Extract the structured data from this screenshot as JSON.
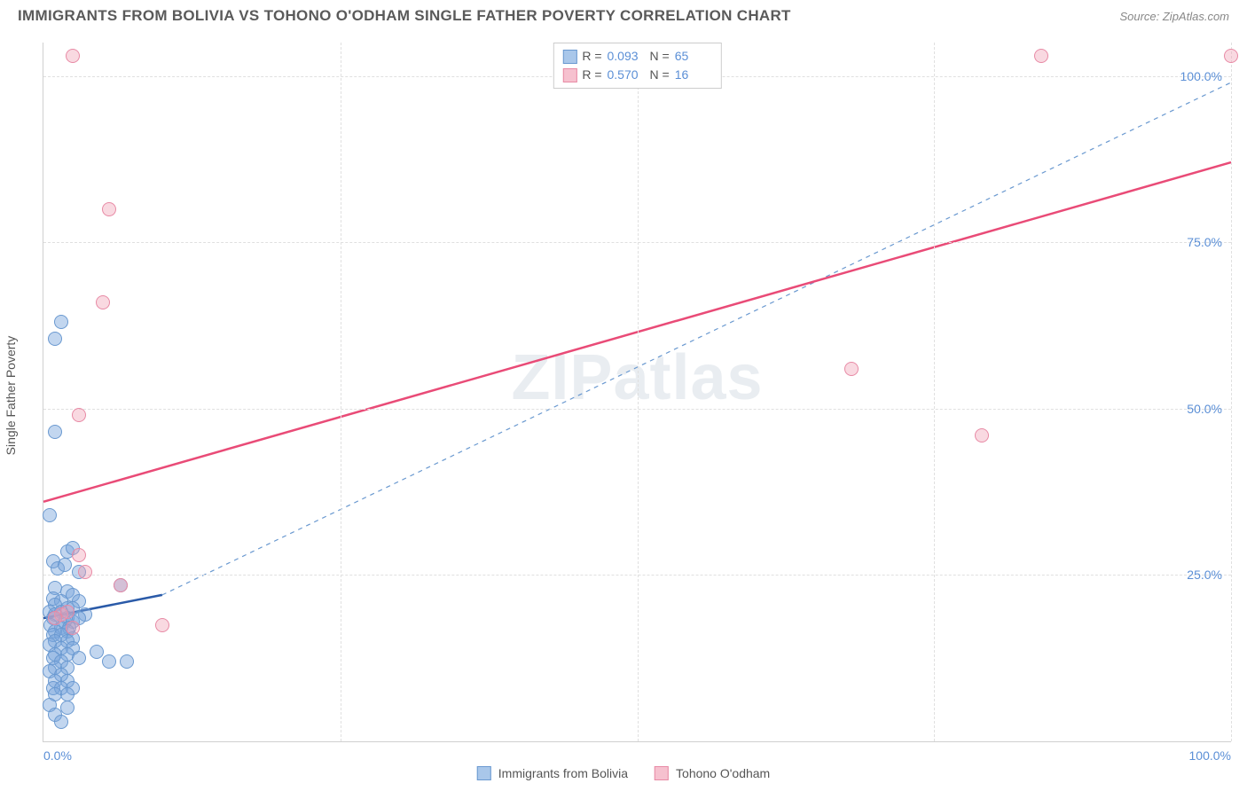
{
  "header": {
    "title": "IMMIGRANTS FROM BOLIVIA VS TOHONO O'ODHAM SINGLE FATHER POVERTY CORRELATION CHART",
    "source": "Source: ZipAtlas.com"
  },
  "chart": {
    "type": "scatter",
    "ylabel": "Single Father Poverty",
    "xlim": [
      0,
      100
    ],
    "ylim": [
      0,
      105
    ],
    "xticks": [
      {
        "pos": 0,
        "label": "0.0%"
      },
      {
        "pos": 100,
        "label": "100.0%"
      }
    ],
    "xgrid": [
      25,
      50,
      75,
      100
    ],
    "yticks": [
      {
        "pos": 25,
        "label": "25.0%"
      },
      {
        "pos": 50,
        "label": "50.0%"
      },
      {
        "pos": 75,
        "label": "75.0%"
      },
      {
        "pos": 100,
        "label": "100.0%"
      }
    ],
    "background_color": "#ffffff",
    "grid_color": "#e0e0e0",
    "axis_label_color": "#5b8fd6",
    "series": [
      {
        "name": "Immigrants from Bolivia",
        "color_fill": "rgba(120,165,220,0.45)",
        "color_stroke": "#6a99d0",
        "swatch_fill": "#a9c7ea",
        "swatch_stroke": "#6a99d0",
        "marker_size": 16,
        "R": "0.093",
        "N": "65",
        "trend": {
          "x1": 0,
          "y1": 18.5,
          "x2": 10,
          "y2": 22,
          "stroke": "#2a5aa8",
          "width": 2.5,
          "dash": "none"
        },
        "trend_ext": {
          "x1": 10,
          "y1": 22,
          "x2": 100,
          "y2": 99,
          "stroke": "#6a99d0",
          "width": 1.2,
          "dash": "5,5"
        },
        "points": [
          {
            "x": 0.5,
            "y": 34
          },
          {
            "x": 1.5,
            "y": 63
          },
          {
            "x": 1.0,
            "y": 60.5
          },
          {
            "x": 1.0,
            "y": 46.5
          },
          {
            "x": 2.0,
            "y": 28.5
          },
          {
            "x": 2.5,
            "y": 29
          },
          {
            "x": 0.8,
            "y": 27
          },
          {
            "x": 1.2,
            "y": 26
          },
          {
            "x": 1.8,
            "y": 26.5
          },
          {
            "x": 3.0,
            "y": 25.5
          },
          {
            "x": 6.5,
            "y": 23.5
          },
          {
            "x": 1.0,
            "y": 23
          },
          {
            "x": 2.0,
            "y": 22.5
          },
          {
            "x": 2.5,
            "y": 22
          },
          {
            "x": 0.8,
            "y": 21.5
          },
          {
            "x": 1.5,
            "y": 21
          },
          {
            "x": 3.0,
            "y": 21
          },
          {
            "x": 1.0,
            "y": 20.5
          },
          {
            "x": 2.0,
            "y": 20
          },
          {
            "x": 2.5,
            "y": 20
          },
          {
            "x": 0.5,
            "y": 19.5
          },
          {
            "x": 1.5,
            "y": 19.5
          },
          {
            "x": 3.5,
            "y": 19
          },
          {
            "x": 1.0,
            "y": 19
          },
          {
            "x": 2.0,
            "y": 18.5
          },
          {
            "x": 0.8,
            "y": 18.5
          },
          {
            "x": 1.8,
            "y": 18
          },
          {
            "x": 2.5,
            "y": 18
          },
          {
            "x": 3.0,
            "y": 18.5
          },
          {
            "x": 0.6,
            "y": 17.5
          },
          {
            "x": 1.5,
            "y": 17
          },
          {
            "x": 2.2,
            "y": 17
          },
          {
            "x": 1.0,
            "y": 16.5
          },
          {
            "x": 2.0,
            "y": 16.5
          },
          {
            "x": 0.8,
            "y": 16
          },
          {
            "x": 1.5,
            "y": 16
          },
          {
            "x": 2.5,
            "y": 15.5
          },
          {
            "x": 1.0,
            "y": 15
          },
          {
            "x": 2.0,
            "y": 15
          },
          {
            "x": 0.5,
            "y": 14.5
          },
          {
            "x": 1.5,
            "y": 14
          },
          {
            "x": 2.5,
            "y": 14
          },
          {
            "x": 4.5,
            "y": 13.5
          },
          {
            "x": 1.0,
            "y": 13
          },
          {
            "x": 2.0,
            "y": 13
          },
          {
            "x": 0.8,
            "y": 12.5
          },
          {
            "x": 3.0,
            "y": 12.5
          },
          {
            "x": 5.5,
            "y": 12
          },
          {
            "x": 7.0,
            "y": 12
          },
          {
            "x": 1.5,
            "y": 12
          },
          {
            "x": 1.0,
            "y": 11
          },
          {
            "x": 2.0,
            "y": 11
          },
          {
            "x": 0.5,
            "y": 10.5
          },
          {
            "x": 1.5,
            "y": 10
          },
          {
            "x": 1.0,
            "y": 9
          },
          {
            "x": 2.0,
            "y": 9
          },
          {
            "x": 0.8,
            "y": 8
          },
          {
            "x": 1.5,
            "y": 8
          },
          {
            "x": 2.5,
            "y": 8
          },
          {
            "x": 1.0,
            "y": 7
          },
          {
            "x": 2.0,
            "y": 7
          },
          {
            "x": 0.5,
            "y": 5.5
          },
          {
            "x": 2.0,
            "y": 5
          },
          {
            "x": 1.0,
            "y": 4
          },
          {
            "x": 1.5,
            "y": 3
          }
        ]
      },
      {
        "name": "Tohono O'odham",
        "color_fill": "rgba(240,160,180,0.40)",
        "color_stroke": "#e88aa5",
        "swatch_fill": "#f6c1cf",
        "swatch_stroke": "#e88aa5",
        "marker_size": 16,
        "R": "0.570",
        "N": "16",
        "trend": {
          "x1": 0,
          "y1": 36,
          "x2": 100,
          "y2": 87,
          "stroke": "#e94b77",
          "width": 2.5,
          "dash": "none"
        },
        "points": [
          {
            "x": 2.5,
            "y": 103
          },
          {
            "x": 84,
            "y": 103
          },
          {
            "x": 100,
            "y": 103
          },
          {
            "x": 5.5,
            "y": 80
          },
          {
            "x": 5.0,
            "y": 66
          },
          {
            "x": 68,
            "y": 56
          },
          {
            "x": 3.0,
            "y": 49
          },
          {
            "x": 79,
            "y": 46
          },
          {
            "x": 3.0,
            "y": 28
          },
          {
            "x": 3.5,
            "y": 25.5
          },
          {
            "x": 6.5,
            "y": 23.5
          },
          {
            "x": 10,
            "y": 17.5
          },
          {
            "x": 1.5,
            "y": 19
          },
          {
            "x": 2.0,
            "y": 19.5
          },
          {
            "x": 1.0,
            "y": 18.5
          },
          {
            "x": 2.5,
            "y": 17
          }
        ]
      }
    ]
  },
  "watermark": {
    "zip": "ZIP",
    "atlas": "atlas"
  },
  "stats_labels": {
    "R": "R =",
    "N": "N ="
  }
}
